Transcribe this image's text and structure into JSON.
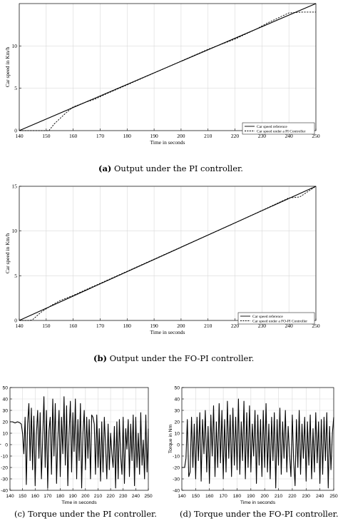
{
  "captions": {
    "a": {
      "letter": "(a)",
      "text": " Output under the PI controller."
    },
    "b": {
      "letter": "(b)",
      "text": " Output under the FO-PI controller."
    },
    "c": {
      "text": "(c) Torque under the PI controller."
    },
    "d": {
      "text": "(d) Torque under the FO-PI controller."
    }
  },
  "chart_data": [
    {
      "id": "a",
      "type": "line",
      "xlabel": "Time in seconds",
      "ylabel": "Car speed in Km/h",
      "xlim": [
        140,
        250
      ],
      "ylim": [
        0,
        15
      ],
      "xticks": [
        "140",
        "150",
        "160",
        "170",
        "180",
        "190",
        "200",
        "210",
        "220",
        "230",
        "240",
        "250"
      ],
      "yticks": [
        "0",
        "5",
        "10"
      ],
      "grid": true,
      "legend_position": "bottom-right",
      "series": [
        {
          "name": "Car speed reference",
          "style": "solid",
          "x": [
            140,
            250
          ],
          "y": [
            0,
            15
          ]
        },
        {
          "name": "Car speed under a PI Controller",
          "style": "dashed",
          "x": [
            140,
            151,
            153,
            157,
            160,
            165,
            168,
            172,
            180,
            200,
            210,
            220,
            228,
            232,
            240,
            245,
            250
          ],
          "y": [
            0,
            0,
            0.8,
            2.0,
            2.8,
            3.4,
            3.7,
            4.3,
            5.4,
            8.2,
            9.6,
            10.8,
            12.0,
            12.7,
            13.9,
            14.0,
            14.0
          ]
        }
      ]
    },
    {
      "id": "b",
      "type": "line",
      "xlabel": "Time in seconds",
      "ylabel": "Car speed in Km/h",
      "xlim": [
        140,
        250
      ],
      "ylim": [
        0,
        15
      ],
      "xticks": [
        "140",
        "150",
        "160",
        "170",
        "180",
        "190",
        "200",
        "210",
        "220",
        "230",
        "240",
        "250"
      ],
      "yticks": [
        "0",
        "5",
        "10",
        "15"
      ],
      "grid": true,
      "legend_position": "bottom-right",
      "series": [
        {
          "name": "Car speed reference",
          "style": "solid",
          "x": [
            140,
            250
          ],
          "y": [
            0,
            15
          ]
        },
        {
          "name": "Car speed under a FO-PI Controller",
          "style": "dashed",
          "x": [
            140,
            144,
            145,
            148,
            152,
            155,
            160,
            180,
            200,
            220,
            240,
            244,
            247,
            250
          ],
          "y": [
            0,
            0,
            0.1,
            0.9,
            1.7,
            2.2,
            2.8,
            5.5,
            8.2,
            10.9,
            13.7,
            13.8,
            14.4,
            15.0
          ]
        }
      ]
    },
    {
      "id": "c",
      "type": "line",
      "xlabel": "Time in seconds",
      "ylabel": "Torque in Nm",
      "xlim": [
        140,
        250
      ],
      "ylim": [
        -40,
        50
      ],
      "xticks": [
        "140",
        "150",
        "160",
        "170",
        "180",
        "190",
        "200",
        "210",
        "220",
        "230",
        "240",
        "250"
      ],
      "yticks": [
        "-40",
        "-30",
        "-20",
        "-10",
        "0",
        "10",
        "20",
        "30",
        "40",
        "50"
      ],
      "grid": true,
      "series": [
        {
          "name": "",
          "style": "solid",
          "x": [
            140,
            142,
            144,
            146,
            148,
            149,
            150,
            151,
            152,
            153,
            154,
            155,
            156,
            157,
            158,
            159,
            160,
            161,
            162,
            163,
            164,
            165,
            166,
            167,
            168,
            169,
            170,
            171,
            172,
            173,
            174,
            175,
            176,
            177,
            178,
            179,
            180,
            181,
            182,
            183,
            184,
            185,
            186,
            187,
            188,
            189,
            190,
            191,
            192,
            193,
            194,
            195,
            196,
            197,
            198,
            199,
            200,
            201,
            202,
            203,
            204,
            205,
            206,
            207,
            208,
            209,
            210,
            211,
            212,
            213,
            214,
            215,
            216,
            217,
            218,
            219,
            220,
            221,
            222,
            223,
            224,
            225,
            226,
            227,
            228,
            229,
            230,
            231,
            232,
            233,
            234,
            235,
            236,
            237,
            238,
            239,
            240,
            241,
            242,
            243,
            244,
            245,
            246,
            247,
            248,
            249,
            250
          ],
          "y": [
            20,
            20,
            19,
            20,
            19,
            18,
            10,
            -8,
            24,
            -35,
            18,
            36,
            -14,
            32,
            -22,
            25,
            -36,
            8,
            30,
            -12,
            28,
            -30,
            6,
            42,
            -20,
            30,
            -38,
            12,
            24,
            -26,
            40,
            -10,
            36,
            -34,
            4,
            30,
            -28,
            24,
            -8,
            42,
            -18,
            34,
            -36,
            10,
            38,
            -24,
            28,
            -6,
            40,
            -30,
            22,
            -14,
            36,
            -38,
            10,
            30,
            -22,
            24,
            -12,
            22,
            -30,
            26,
            24,
            18,
            -26,
            26,
            -20,
            14,
            -32,
            20,
            -24,
            24,
            0,
            -30,
            18,
            -22,
            10,
            -8,
            -20,
            16,
            -38,
            20,
            -30,
            22,
            -10,
            -26,
            24,
            -34,
            14,
            -4,
            22,
            -28,
            18,
            -14,
            26,
            -36,
            24,
            -20,
            10,
            -26,
            28,
            -18,
            4,
            -30,
            26,
            -24,
            14
          ]
        }
      ]
    },
    {
      "id": "d",
      "type": "line",
      "xlabel": "Time in seconds",
      "ylabel": "Torque in Nm",
      "xlim": [
        140,
        250
      ],
      "ylim": [
        -40,
        50
      ],
      "xticks": [
        "140",
        "150",
        "160",
        "170",
        "180",
        "190",
        "200",
        "210",
        "220",
        "230",
        "240",
        "250"
      ],
      "yticks": [
        "-40",
        "-30",
        "-20",
        "-10",
        "0",
        "10",
        "20",
        "30",
        "40",
        "50"
      ],
      "grid": true,
      "series": [
        {
          "name": "",
          "style": "solid",
          "x": [
            140,
            141,
            142,
            143,
            144,
            145,
            146,
            147,
            148,
            149,
            150,
            151,
            152,
            153,
            154,
            155,
            156,
            157,
            158,
            159,
            160,
            161,
            162,
            163,
            164,
            165,
            166,
            167,
            168,
            169,
            170,
            171,
            172,
            173,
            174,
            175,
            176,
            177,
            178,
            179,
            180,
            181,
            182,
            183,
            184,
            185,
            186,
            187,
            188,
            189,
            190,
            191,
            192,
            193,
            194,
            195,
            196,
            197,
            198,
            199,
            200,
            201,
            202,
            203,
            204,
            205,
            206,
            207,
            208,
            209,
            210,
            211,
            212,
            213,
            214,
            215,
            216,
            217,
            218,
            219,
            220,
            221,
            222,
            223,
            224,
            225,
            226,
            227,
            228,
            229,
            230,
            231,
            232,
            233,
            234,
            235,
            236,
            237,
            238,
            239,
            240,
            241,
            242,
            243,
            244,
            245,
            246,
            247,
            248,
            249,
            250
          ],
          "y": [
            -20,
            -20,
            -20,
            -12,
            22,
            -28,
            -24,
            24,
            -20,
            18,
            -30,
            24,
            -14,
            28,
            -32,
            22,
            -8,
            30,
            -24,
            16,
            -34,
            26,
            -10,
            34,
            -28,
            20,
            -20,
            36,
            -16,
            30,
            -30,
            22,
            -24,
            38,
            -12,
            26,
            -28,
            32,
            -18,
            24,
            -22,
            40,
            -26,
            20,
            -14,
            38,
            -30,
            28,
            -20,
            34,
            -24,
            18,
            -10,
            30,
            -34,
            26,
            -18,
            22,
            -28,
            30,
            -20,
            36,
            -24,
            18,
            -30,
            24,
            -14,
            28,
            -38,
            22,
            -18,
            32,
            -26,
            20,
            -12,
            30,
            -24,
            16,
            -8,
            -28,
            26,
            -14,
            -36,
            22,
            -20,
            30,
            -26,
            18,
            -12,
            24,
            -32,
            20,
            -18,
            26,
            -30,
            14,
            -24,
            28,
            -16,
            20,
            -34,
            22,
            -26,
            24,
            -14,
            28,
            -38,
            16,
            -22,
            10,
            24
          ]
        }
      ]
    }
  ]
}
